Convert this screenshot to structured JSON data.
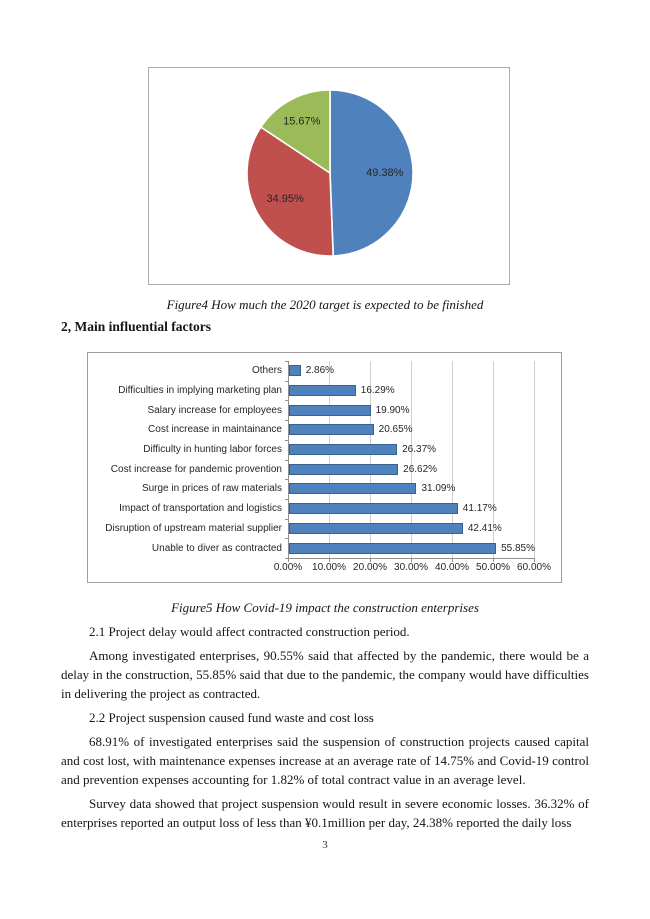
{
  "document": {
    "caption_figure4": "Figure4 How much the 2020 target is expected to be finished",
    "heading_section2": "2, Main influential factors",
    "caption_figure5": "Figure5 How Covid-19 impact the construction enterprises",
    "para_2_1": "2.1 Project delay would affect contracted construction period.",
    "para_2_1_body": "Among investigated enterprises, 90.55% said that affected by the pandemic, there would be a delay in the construction, 55.85% said that due to the pandemic, the company would have difficulties in delivering the project as contracted.",
    "para_2_2": "2.2 Project suspension caused fund waste and cost loss",
    "para_2_2_body": "68.91% of investigated enterprises said the suspension of construction projects caused capital and cost lost, with maintenance expenses increase at an average rate of 14.75% and Covid-19 control and prevention expenses accounting for 1.82% of total contract value in an average level.",
    "para_2_2_body2": "Survey data showed that project suspension would result in severe economic losses. 36.32% of enterprises reported an output loss of less than ¥0.1million per day, 24.38% reported the daily loss",
    "page_number": "3"
  },
  "chart_data": [
    {
      "type": "pie",
      "title": "How much the 2020 target is expected to be finished",
      "values": [
        49.38,
        34.95,
        15.67
      ],
      "data_labels": [
        "49.38%",
        "34.95%",
        "15.67%"
      ],
      "colors": [
        "#4F81BD",
        "#C0504D",
        "#9BBB59"
      ],
      "start_angle_deg": 0,
      "direction": "clockwise",
      "legend": "none"
    },
    {
      "type": "bar",
      "orientation": "horizontal",
      "title": "How Covid-19 impact the construction enterprises",
      "categories": [
        "Others",
        "Difficulties in implying marketing plan",
        "Salary increase for employees",
        "Cost increase in maintainance",
        "Difficulty in hunting labor forces",
        "Cost increase for pandemic provention",
        "Surge in prices of raw materials",
        "Impact of transportation and logistics",
        "Disruption of upstream material supplier",
        "Unable to diver as contracted"
      ],
      "values": [
        2.86,
        16.29,
        19.9,
        20.65,
        26.37,
        26.62,
        31.09,
        41.17,
        42.41,
        55.85
      ],
      "data_labels": [
        "2.86%",
        "16.29%",
        "19.90%",
        "20.65%",
        "26.37%",
        "26.62%",
        "31.09%",
        "41.17%",
        "42.41%",
        "55.85%"
      ],
      "xlim": [
        0,
        60
      ],
      "x_ticks": [
        "0.00%",
        "10.00%",
        "20.00%",
        "30.00%",
        "40.00%",
        "50.00%",
        "60.00%"
      ],
      "bar_color": "#4F81BD",
      "bar_border_color": "#38618E",
      "grid": true,
      "legend": "none"
    }
  ]
}
